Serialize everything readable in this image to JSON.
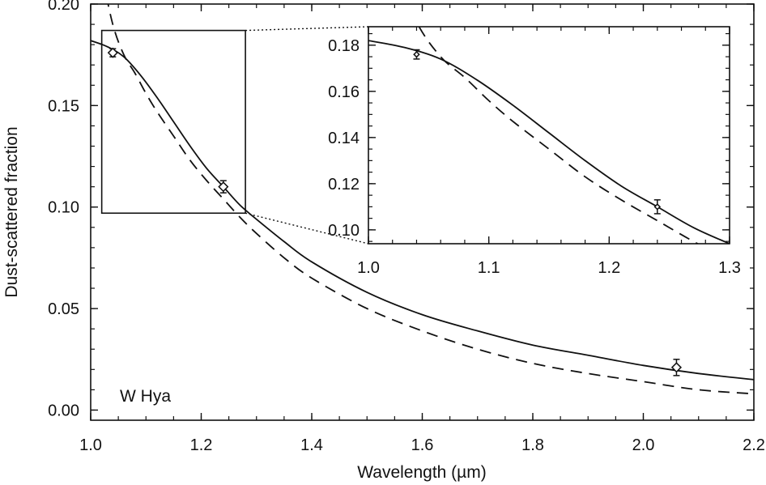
{
  "chart_data": {
    "type": "line",
    "xlabel": "Wavelength (µm)",
    "ylabel": "Dust-scattered fraction",
    "annotation": "W Hya",
    "xlim": [
      1.0,
      2.2
    ],
    "ylim": [
      -0.005,
      0.2
    ],
    "x_ticks": [
      1.0,
      1.2,
      1.4,
      1.6,
      1.8,
      2.0,
      2.2
    ],
    "x_tick_labels": [
      "1.0",
      "1.2",
      "1.4",
      "1.6",
      "1.8",
      "2.0",
      "2.2"
    ],
    "y_ticks": [
      0.0,
      0.05,
      0.1,
      0.15,
      0.2
    ],
    "y_tick_labels": [
      "0.00",
      "0.05",
      "0.10",
      "0.15",
      "0.20"
    ],
    "grid": false,
    "series": [
      {
        "style": "solid",
        "x": [
          1.0,
          1.03,
          1.06,
          1.09,
          1.12,
          1.15,
          1.18,
          1.21,
          1.24,
          1.27,
          1.3,
          1.35,
          1.4,
          1.5,
          1.6,
          1.7,
          1.8,
          1.9,
          2.0,
          2.1,
          2.2
        ],
        "y": [
          0.182,
          0.179,
          0.174,
          0.165,
          0.154,
          0.142,
          0.13,
          0.119,
          0.11,
          0.101,
          0.094,
          0.083,
          0.073,
          0.058,
          0.047,
          0.039,
          0.032,
          0.027,
          0.022,
          0.018,
          0.015
        ]
      },
      {
        "style": "dashed",
        "x": [
          1.0,
          1.02,
          1.04,
          1.06,
          1.08,
          1.1,
          1.12,
          1.15,
          1.18,
          1.21,
          1.24,
          1.27,
          1.3,
          1.35,
          1.4,
          1.5,
          1.6,
          1.7,
          1.8,
          1.9,
          2.0,
          2.1,
          2.2
        ],
        "y": [
          0.24,
          0.215,
          0.19,
          0.175,
          0.166,
          0.156,
          0.147,
          0.135,
          0.123,
          0.113,
          0.104,
          0.095,
          0.087,
          0.075,
          0.065,
          0.05,
          0.039,
          0.03,
          0.023,
          0.018,
          0.014,
          0.01,
          0.008
        ]
      }
    ],
    "observations": [
      {
        "x": 1.04,
        "y": 0.176,
        "err": 0.002
      },
      {
        "x": 1.24,
        "y": 0.11,
        "err": 0.003
      },
      {
        "x": 2.06,
        "y": 0.021,
        "err": 0.004
      }
    ],
    "zoom_box": {
      "xlim": [
        1.02,
        1.28
      ],
      "ylim": [
        0.097,
        0.187
      ]
    },
    "inset": {
      "xlim": [
        1.0,
        1.3
      ],
      "ylim": [
        0.094,
        0.188
      ],
      "x_ticks": [
        1.0,
        1.1,
        1.2,
        1.3
      ],
      "x_tick_labels": [
        "1.0",
        "1.1",
        "1.2",
        "1.3"
      ],
      "y_ticks": [
        0.1,
        0.12,
        0.14,
        0.16,
        0.18
      ],
      "y_tick_labels": [
        "0.10",
        "0.12",
        "0.14",
        "0.16",
        "0.18"
      ]
    }
  }
}
